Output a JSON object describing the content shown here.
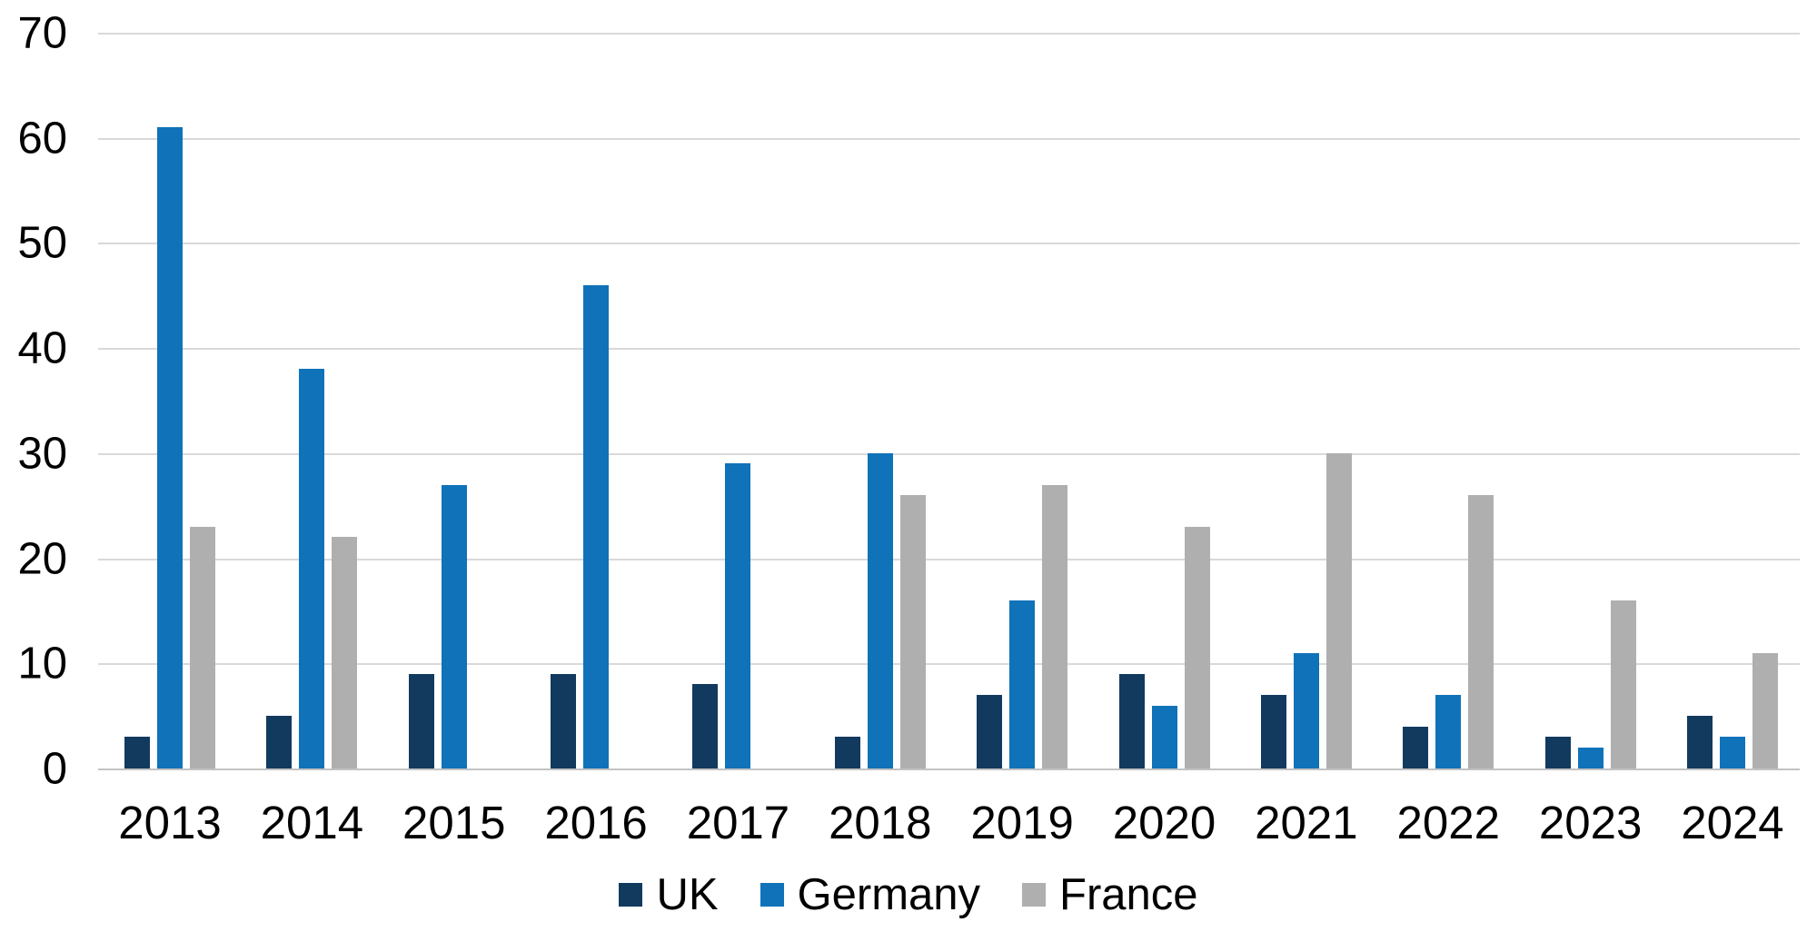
{
  "colors": {
    "uk": "#123a5f",
    "germany": "#1072b9",
    "france": "#afafaf",
    "gridline": "#d9d9d9",
    "axis_line": "#c3c3c3",
    "text": "#000000",
    "background": "#ffffff"
  },
  "chart_data": {
    "type": "bar",
    "title": "",
    "categories": [
      "2013",
      "2014",
      "2015",
      "2016",
      "2017",
      "2018",
      "2019",
      "2020",
      "2021",
      "2022",
      "2023",
      "2024"
    ],
    "series": [
      {
        "name": "UK",
        "color_key": "uk",
        "values": [
          3,
          5,
          9,
          9,
          8,
          3,
          7,
          9,
          7,
          4,
          3,
          5
        ]
      },
      {
        "name": "Germany",
        "color_key": "germany",
        "values": [
          61,
          38,
          27,
          46,
          29,
          30,
          16,
          6,
          11,
          7,
          2,
          3
        ]
      },
      {
        "name": "France",
        "color_key": "france",
        "values": [
          23,
          22,
          0,
          0,
          0,
          26,
          27,
          23,
          30,
          26,
          16,
          11
        ]
      }
    ],
    "xlabel": "",
    "ylabel": "",
    "y_axis": {
      "min": 0,
      "max": 70,
      "tick_interval": 10,
      "ticks": [
        70,
        60,
        50,
        40,
        30,
        20,
        10,
        0
      ]
    },
    "grid": "horizontal-only",
    "legend_position": "bottom-center"
  }
}
